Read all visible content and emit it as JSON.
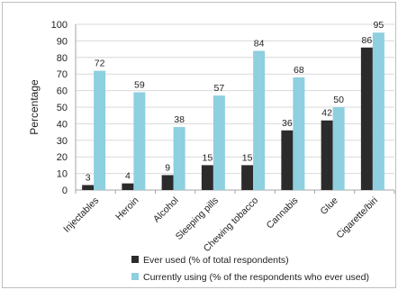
{
  "chart_data": {
    "type": "bar",
    "title": "",
    "xlabel": "",
    "ylabel": "Percentage",
    "ylim": [
      0,
      100
    ],
    "yticks": [
      0,
      10,
      20,
      30,
      40,
      50,
      60,
      70,
      80,
      90,
      100
    ],
    "grid": true,
    "legend_position": "bottom",
    "categories": [
      "Injectables",
      "Heroin",
      "Alcohol",
      "Sleeping pills",
      "Chewing tobacco",
      "Cannabis",
      "Glue",
      "Cigarette/biri"
    ],
    "series": [
      {
        "name": "Ever used (% of total respondents)",
        "color": "#2b2b2b",
        "values": [
          3,
          4,
          9,
          15,
          15,
          36,
          42,
          86
        ]
      },
      {
        "name": "Currently using (% of the respondents who ever used)",
        "color": "#8ecfe0",
        "values": [
          72,
          59,
          38,
          57,
          84,
          68,
          50,
          95
        ]
      }
    ]
  }
}
